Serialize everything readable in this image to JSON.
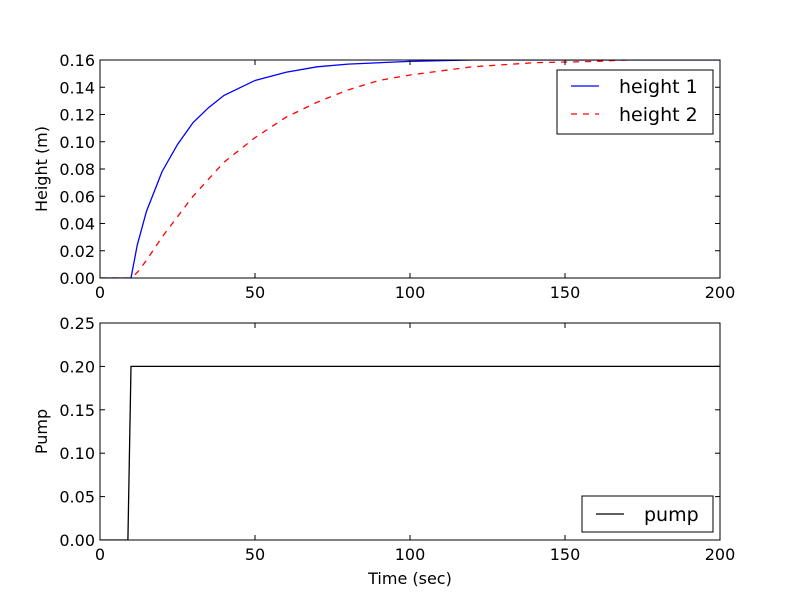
{
  "chart_data": [
    {
      "type": "line",
      "title": "",
      "xlabel": "",
      "ylabel": "Height (m)",
      "xlim": [
        0,
        200
      ],
      "ylim": [
        0,
        0.16
      ],
      "xticks": [
        "0",
        "50",
        "100",
        "150",
        "200"
      ],
      "yticks": [
        "0.00",
        "0.02",
        "0.04",
        "0.06",
        "0.08",
        "0.10",
        "0.12",
        "0.14",
        "0.16"
      ],
      "grid": false,
      "legend": "top-right",
      "series": [
        {
          "name": "height 1",
          "color": "#0000ff",
          "style": "solid",
          "x": [
            0,
            10,
            12,
            15,
            20,
            25,
            30,
            35,
            40,
            50,
            60,
            70,
            80,
            100,
            120,
            150,
            200
          ],
          "y": [
            0,
            0,
            0.024,
            0.049,
            0.078,
            0.098,
            0.114,
            0.125,
            0.134,
            0.145,
            0.151,
            0.155,
            0.157,
            0.159,
            0.16,
            0.16,
            0.16
          ]
        },
        {
          "name": "height 2",
          "color": "#ff0000",
          "style": "dashed",
          "x": [
            0,
            10,
            12,
            15,
            20,
            25,
            30,
            40,
            50,
            60,
            70,
            80,
            90,
            100,
            120,
            140,
            160,
            170
          ],
          "y": [
            0,
            0,
            0.004,
            0.013,
            0.03,
            0.045,
            0.06,
            0.085,
            0.103,
            0.118,
            0.129,
            0.138,
            0.145,
            0.149,
            0.155,
            0.158,
            0.159,
            0.16
          ]
        }
      ]
    },
    {
      "type": "line",
      "title": "",
      "xlabel": "Time (sec)",
      "ylabel": "Pump",
      "xlim": [
        0,
        200
      ],
      "ylim": [
        0,
        0.25
      ],
      "xticks": [
        "0",
        "50",
        "100",
        "150",
        "200"
      ],
      "yticks": [
        "0.00",
        "0.05",
        "0.10",
        "0.15",
        "0.20",
        "0.25"
      ],
      "grid": false,
      "legend": "bottom-right",
      "series": [
        {
          "name": "pump",
          "color": "#000000",
          "style": "solid",
          "x": [
            0,
            9,
            10,
            200
          ],
          "y": [
            0,
            0,
            0.2,
            0.2
          ]
        }
      ]
    }
  ]
}
